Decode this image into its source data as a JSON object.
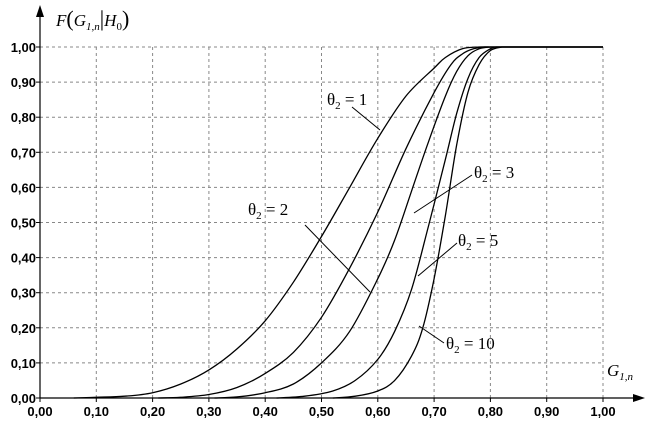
{
  "chart_data": {
    "type": "line",
    "ylabel": "F(G1,n | H0)",
    "ylabel_parts": {
      "f": "F",
      "g": "G",
      "gsub": "1,n",
      "h": "H",
      "hsub": "0"
    },
    "xlabel_parts": {
      "g": "G",
      "gsub": "1,n"
    },
    "xlim": [
      0,
      1
    ],
    "ylim": [
      0,
      1
    ],
    "grid": true,
    "x_ticks": [
      "0,00",
      "0,10",
      "0,20",
      "0,30",
      "0,40",
      "0,50",
      "0,60",
      "0,70",
      "0,80",
      "0,90",
      "1,00"
    ],
    "y_ticks": [
      "0,00",
      "0,10",
      "0,20",
      "0,30",
      "0,40",
      "0,50",
      "0,60",
      "0,70",
      "0,80",
      "0,90",
      "1,00"
    ],
    "series": [
      {
        "name": "θ2 = 1",
        "label_parts": {
          "theta": "θ",
          "sub": "2",
          "eq": " = 1"
        },
        "x": [
          0.06,
          0.1,
          0.15,
          0.2,
          0.25,
          0.3,
          0.35,
          0.4,
          0.45,
          0.5,
          0.55,
          0.6,
          0.65,
          0.7,
          0.72,
          0.75,
          0.78,
          0.8
        ],
        "y": [
          0.0,
          0.002,
          0.005,
          0.015,
          0.04,
          0.08,
          0.14,
          0.22,
          0.33,
          0.46,
          0.6,
          0.74,
          0.86,
          0.94,
          0.97,
          0.995,
          1.0,
          1.0
        ]
      },
      {
        "name": "θ2 = 2",
        "label_parts": {
          "theta": "θ",
          "sub": "2",
          "eq": " = 2"
        },
        "x": [
          0.21,
          0.25,
          0.3,
          0.35,
          0.4,
          0.45,
          0.5,
          0.55,
          0.6,
          0.65,
          0.7,
          0.73,
          0.75,
          0.77,
          0.79
        ],
        "y": [
          0.0,
          0.002,
          0.01,
          0.03,
          0.07,
          0.13,
          0.23,
          0.37,
          0.53,
          0.71,
          0.87,
          0.95,
          0.98,
          0.995,
          1.0
        ]
      },
      {
        "name": "θ2 = 3",
        "label_parts": {
          "theta": "θ",
          "sub": "2",
          "eq": " = 3"
        },
        "x": [
          0.31,
          0.35,
          0.4,
          0.45,
          0.5,
          0.55,
          0.6,
          0.63,
          0.66,
          0.69,
          0.72,
          0.74,
          0.76,
          0.78,
          0.8
        ],
        "y": [
          0.0,
          0.003,
          0.015,
          0.04,
          0.1,
          0.19,
          0.34,
          0.45,
          0.59,
          0.73,
          0.86,
          0.93,
          0.975,
          0.995,
          1.0
        ]
      },
      {
        "name": "θ2 = 5",
        "label_parts": {
          "theta": "θ",
          "sub": "2",
          "eq": " = 5"
        },
        "x": [
          0.42,
          0.47,
          0.52,
          0.56,
          0.6,
          0.63,
          0.66,
          0.69,
          0.72,
          0.74,
          0.76,
          0.78,
          0.8,
          0.81
        ],
        "y": [
          0.0,
          0.005,
          0.02,
          0.05,
          0.11,
          0.19,
          0.31,
          0.49,
          0.68,
          0.81,
          0.91,
          0.97,
          0.995,
          1.0
        ]
      },
      {
        "name": "θ2 = 10",
        "label_parts": {
          "theta": "θ",
          "sub": "2",
          "eq": " = 10"
        },
        "x": [
          0.52,
          0.56,
          0.6,
          0.63,
          0.66,
          0.68,
          0.7,
          0.72,
          0.74,
          0.76,
          0.78,
          0.8,
          0.82
        ],
        "y": [
          0.0,
          0.005,
          0.02,
          0.05,
          0.12,
          0.2,
          0.34,
          0.52,
          0.72,
          0.87,
          0.95,
          0.99,
          1.0
        ]
      }
    ]
  }
}
